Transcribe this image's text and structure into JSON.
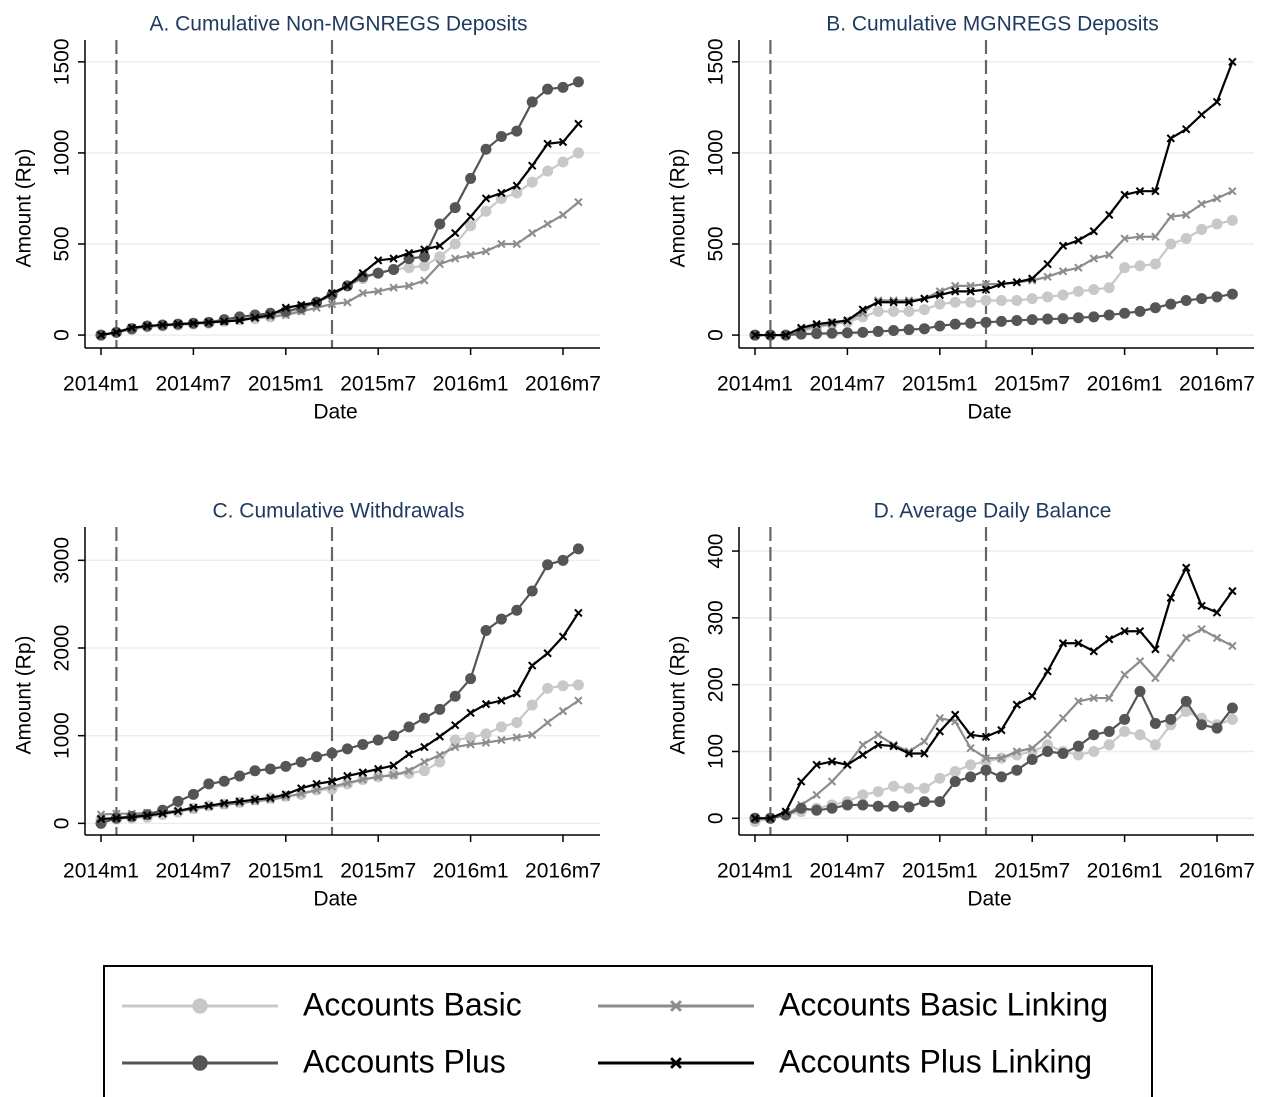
{
  "chart_data": [
    {
      "type": "line",
      "title": "A. Cumulative Non-MGNREGS Deposits",
      "x_label": "Date",
      "y_label": "Amount (Rp)",
      "categories": [
        "2014m1",
        null,
        null,
        null,
        null,
        null,
        "2014m7",
        null,
        null,
        null,
        null,
        null,
        "2015m1",
        null,
        null,
        null,
        null,
        null,
        "2015m7",
        null,
        null,
        null,
        null,
        null,
        "2016m1",
        null,
        null,
        null,
        null,
        null,
        "2016m7",
        null
      ],
      "ylim": [
        -60,
        1620
      ],
      "yticks": [
        0,
        500,
        1000,
        1500
      ],
      "grid": true,
      "vlines": [
        1,
        15
      ],
      "series": [
        {
          "name": "Accounts Basic",
          "color": "#c8c8c8",
          "marker": "circle",
          "values": [
            0,
            15,
            30,
            45,
            50,
            55,
            60,
            65,
            75,
            85,
            90,
            100,
            120,
            140,
            180,
            220,
            270,
            310,
            340,
            360,
            370,
            380,
            430,
            500,
            600,
            680,
            750,
            780,
            840,
            900,
            950,
            1000
          ]
        },
        {
          "name": "Accounts Basic Linking",
          "color": "#8c8c8c",
          "marker": "x",
          "values": [
            0,
            15,
            40,
            50,
            55,
            60,
            65,
            70,
            80,
            85,
            95,
            100,
            110,
            130,
            150,
            170,
            180,
            230,
            240,
            260,
            270,
            300,
            390,
            420,
            440,
            460,
            500,
            500,
            560,
            610,
            660,
            730
          ]
        },
        {
          "name": "Accounts Plus",
          "color": "#555555",
          "marker": "circle",
          "values": [
            0,
            15,
            35,
            50,
            55,
            60,
            65,
            70,
            85,
            100,
            110,
            120,
            130,
            150,
            180,
            220,
            270,
            320,
            340,
            360,
            420,
            430,
            610,
            700,
            860,
            1020,
            1090,
            1120,
            1280,
            1350,
            1360,
            1390
          ]
        },
        {
          "name": "Accounts Plus Linking",
          "color": "#000000",
          "marker": "x",
          "values": [
            0,
            15,
            40,
            50,
            55,
            60,
            65,
            70,
            75,
            80,
            95,
            110,
            150,
            165,
            180,
            230,
            270,
            340,
            410,
            420,
            450,
            470,
            490,
            560,
            650,
            750,
            780,
            820,
            930,
            1050,
            1060,
            1160
          ]
        }
      ]
    },
    {
      "type": "line",
      "title": "B. Cumulative MGNREGS Deposits",
      "x_label": "Date",
      "y_label": "Amount (Rp)",
      "categories": [
        "2014m1",
        null,
        null,
        null,
        null,
        null,
        "2014m7",
        null,
        null,
        null,
        null,
        null,
        "2015m1",
        null,
        null,
        null,
        null,
        null,
        "2015m7",
        null,
        null,
        null,
        null,
        null,
        "2016m1",
        null,
        null,
        null,
        null,
        null,
        "2016m7",
        null
      ],
      "ylim": [
        -60,
        1620
      ],
      "yticks": [
        0,
        500,
        1000,
        1500
      ],
      "grid": true,
      "vlines": [
        1,
        15
      ],
      "series": [
        {
          "name": "Accounts Basic",
          "color": "#c8c8c8",
          "marker": "circle",
          "values": [
            0,
            0,
            0,
            20,
            40,
            60,
            70,
            100,
            130,
            130,
            130,
            140,
            170,
            180,
            180,
            190,
            190,
            190,
            200,
            210,
            220,
            240,
            250,
            260,
            370,
            380,
            390,
            500,
            530,
            580,
            610,
            630
          ]
        },
        {
          "name": "Accounts Basic Linking",
          "color": "#8c8c8c",
          "marker": "x",
          "values": [
            0,
            0,
            0,
            30,
            50,
            60,
            80,
            120,
            190,
            190,
            190,
            200,
            240,
            270,
            270,
            280,
            280,
            290,
            300,
            320,
            350,
            370,
            420,
            440,
            530,
            540,
            540,
            650,
            660,
            720,
            750,
            790
          ]
        },
        {
          "name": "Accounts Plus",
          "color": "#555555",
          "marker": "circle",
          "values": [
            0,
            0,
            0,
            5,
            8,
            10,
            12,
            15,
            20,
            25,
            30,
            35,
            50,
            60,
            65,
            70,
            75,
            80,
            85,
            88,
            90,
            95,
            100,
            110,
            120,
            130,
            150,
            170,
            190,
            200,
            210,
            225
          ]
        },
        {
          "name": "Accounts Plus Linking",
          "color": "#000000",
          "marker": "x",
          "values": [
            0,
            0,
            0,
            40,
            60,
            70,
            80,
            140,
            180,
            180,
            180,
            200,
            220,
            240,
            240,
            250,
            280,
            290,
            310,
            390,
            490,
            520,
            570,
            660,
            770,
            790,
            790,
            1080,
            1130,
            1210,
            1280,
            1500
          ]
        }
      ]
    },
    {
      "type": "line",
      "title": "C. Cumulative Withdrawals",
      "x_label": "Date",
      "y_label": "Amount (Rp)",
      "categories": [
        "2014m1",
        null,
        null,
        null,
        null,
        null,
        "2014m7",
        null,
        null,
        null,
        null,
        null,
        "2015m1",
        null,
        null,
        null,
        null,
        null,
        "2015m7",
        null,
        null,
        null,
        null,
        null,
        "2016m1",
        null,
        null,
        null,
        null,
        null,
        "2016m7",
        null
      ],
      "ylim": [
        -110,
        3380
      ],
      "yticks": [
        0,
        1000,
        2000,
        3000
      ],
      "grid": true,
      "vlines": [
        1,
        15
      ],
      "series": [
        {
          "name": "Accounts Basic",
          "color": "#c8c8c8",
          "marker": "circle",
          "values": [
            50,
            50,
            60,
            70,
            100,
            130,
            170,
            200,
            220,
            240,
            270,
            290,
            310,
            330,
            380,
            390,
            450,
            500,
            530,
            560,
            570,
            600,
            700,
            950,
            980,
            1020,
            1100,
            1150,
            1350,
            1540,
            1570,
            1580
          ]
        },
        {
          "name": "Accounts Basic Linking",
          "color": "#8c8c8c",
          "marker": "x",
          "values": [
            100,
            110,
            110,
            120,
            130,
            140,
            160,
            190,
            210,
            230,
            250,
            270,
            300,
            340,
            380,
            420,
            460,
            500,
            530,
            550,
            600,
            700,
            780,
            870,
            900,
            920,
            950,
            980,
            1010,
            1150,
            1280,
            1400
          ]
        },
        {
          "name": "Accounts Plus",
          "color": "#555555",
          "marker": "circle",
          "values": [
            0,
            60,
            80,
            100,
            150,
            250,
            330,
            450,
            480,
            540,
            600,
            620,
            650,
            700,
            760,
            800,
            850,
            900,
            950,
            1000,
            1100,
            1200,
            1300,
            1450,
            1650,
            2200,
            2330,
            2430,
            2650,
            2950,
            3000,
            3130
          ]
        },
        {
          "name": "Accounts Plus Linking",
          "color": "#000000",
          "marker": "x",
          "values": [
            50,
            60,
            70,
            90,
            110,
            140,
            180,
            200,
            230,
            250,
            270,
            290,
            330,
            400,
            450,
            480,
            540,
            580,
            620,
            660,
            790,
            870,
            990,
            1120,
            1260,
            1360,
            1400,
            1480,
            1800,
            1940,
            2130,
            2400
          ]
        }
      ]
    },
    {
      "type": "line",
      "title": "D. Average Daily Balance",
      "x_label": "Date",
      "y_label": "Amount (Rp)",
      "categories": [
        "2014m1",
        null,
        null,
        null,
        null,
        null,
        "2014m7",
        null,
        null,
        null,
        null,
        null,
        "2015m1",
        null,
        null,
        null,
        null,
        null,
        "2015m7",
        null,
        null,
        null,
        null,
        null,
        "2016m1",
        null,
        null,
        null,
        null,
        null,
        "2016m7",
        null
      ],
      "ylim": [
        -22,
        436
      ],
      "yticks": [
        0,
        100,
        200,
        300,
        400
      ],
      "grid": true,
      "vlines": [
        1,
        15
      ],
      "series": [
        {
          "name": "Accounts Basic",
          "color": "#c8c8c8",
          "marker": "circle",
          "values": [
            -5,
            0,
            5,
            10,
            15,
            20,
            25,
            35,
            40,
            48,
            45,
            45,
            60,
            70,
            80,
            85,
            90,
            95,
            100,
            110,
            100,
            95,
            100,
            110,
            130,
            125,
            110,
            140,
            160,
            150,
            140,
            148
          ]
        },
        {
          "name": "Accounts Basic Linking",
          "color": "#8c8c8c",
          "marker": "x",
          "values": [
            0,
            0,
            5,
            20,
            35,
            55,
            80,
            110,
            125,
            110,
            100,
            115,
            150,
            145,
            105,
            90,
            90,
            100,
            105,
            125,
            150,
            175,
            180,
            180,
            215,
            235,
            210,
            240,
            270,
            283,
            270,
            258
          ]
        },
        {
          "name": "Accounts Plus",
          "color": "#555555",
          "marker": "circle",
          "values": [
            0,
            0,
            5,
            15,
            12,
            15,
            20,
            20,
            18,
            18,
            17,
            25,
            25,
            55,
            62,
            72,
            62,
            72,
            88,
            100,
            97,
            108,
            125,
            130,
            148,
            190,
            142,
            148,
            175,
            140,
            135,
            165
          ]
        },
        {
          "name": "Accounts Plus Linking",
          "color": "#000000",
          "marker": "x",
          "values": [
            0,
            0,
            10,
            55,
            80,
            85,
            80,
            95,
            110,
            108,
            97,
            97,
            130,
            155,
            125,
            122,
            132,
            170,
            183,
            220,
            262,
            262,
            250,
            268,
            280,
            280,
            253,
            330,
            375,
            318,
            308,
            340
          ]
        }
      ]
    }
  ]
}
